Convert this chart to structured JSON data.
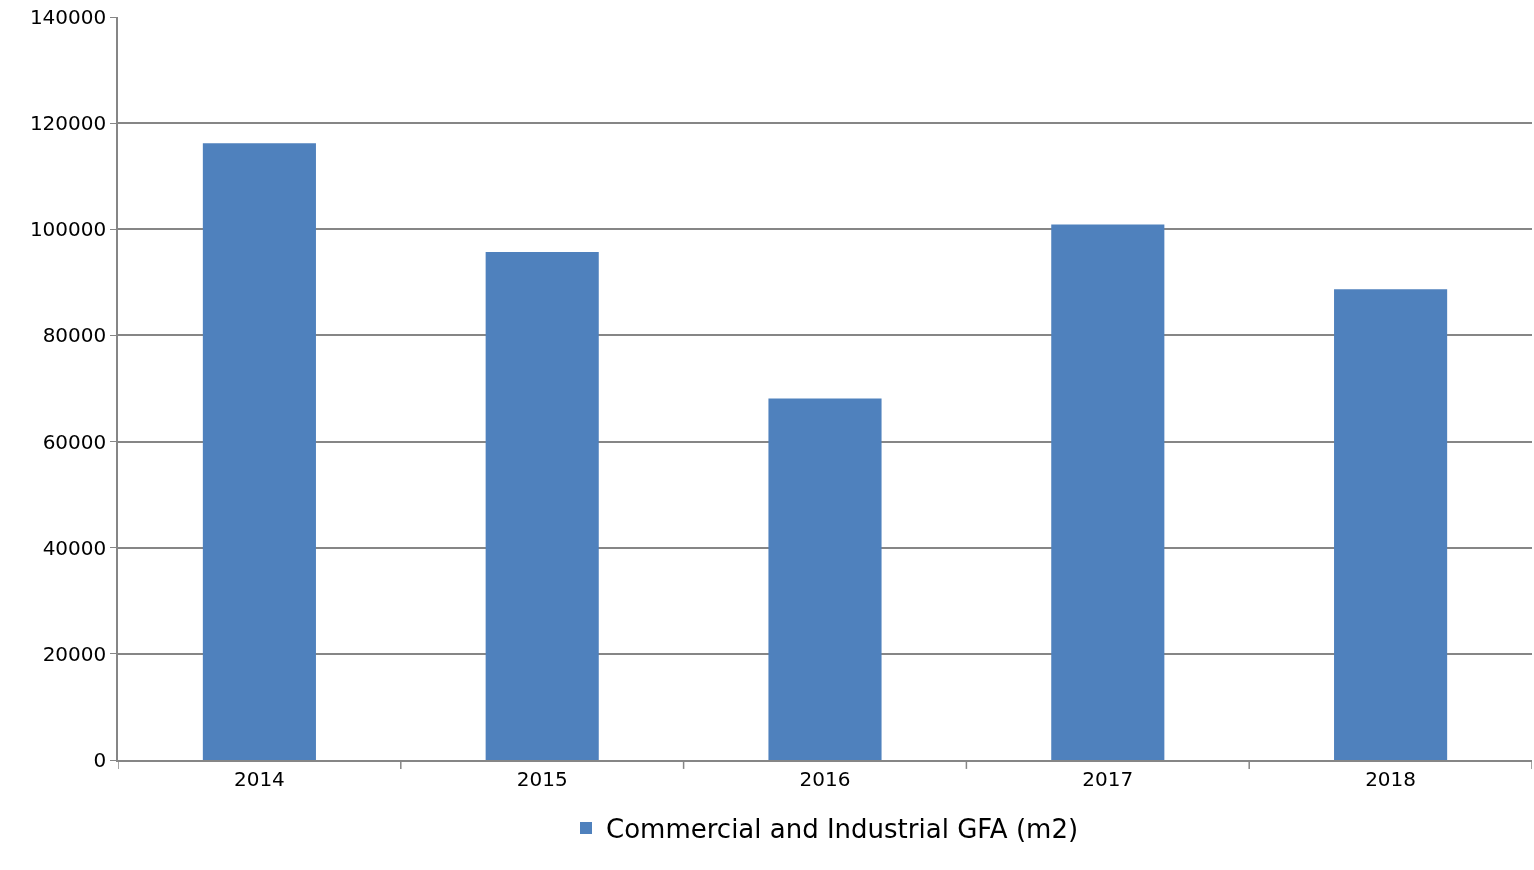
{
  "chart_data": {
    "type": "bar",
    "categories": [
      "2014",
      "2015",
      "2016",
      "2017",
      "2018"
    ],
    "series": [
      {
        "name": "Commercial and Industrial GFA (m2)",
        "color": "#4f81bd",
        "values": [
          116200,
          95700,
          68100,
          100900,
          88700
        ]
      }
    ],
    "ylim": [
      0,
      140000
    ],
    "yticks": [
      0,
      20000,
      40000,
      60000,
      80000,
      100000,
      120000,
      140000
    ],
    "grid": "y",
    "legend": "bottom"
  }
}
